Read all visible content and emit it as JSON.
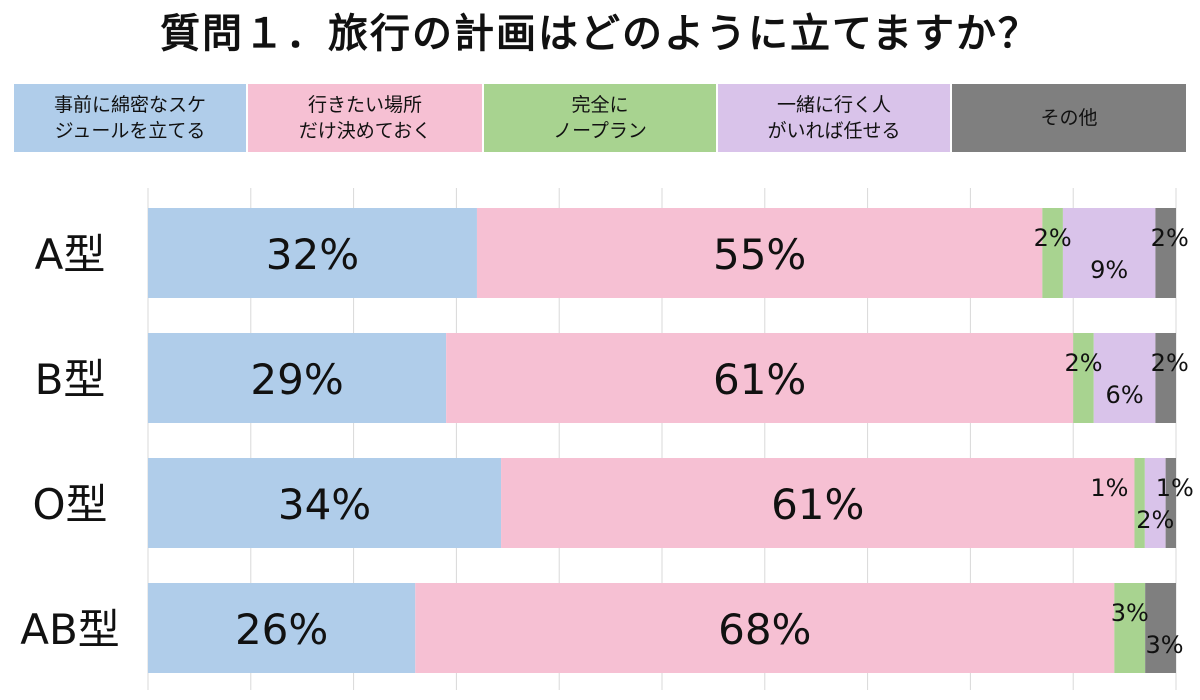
{
  "chart_data": {
    "type": "bar",
    "orientation": "horizontal",
    "stacked": true,
    "title": "質問１．旅行の計画はどのように立てますか？",
    "categories": [
      "A型",
      "B型",
      "O型",
      "AB型"
    ],
    "series": [
      {
        "name_lines": [
          "事前に綿密なスケ",
          "ジュールを立てる"
        ],
        "color": "#B0CDEA",
        "values": [
          32,
          29,
          34,
          26
        ],
        "labels": [
          "32%",
          "29%",
          "34%",
          "26%"
        ]
      },
      {
        "name_lines": [
          "行きたい場所",
          "だけ決めておく"
        ],
        "color": "#F6C0D3",
        "values": [
          55,
          61,
          61,
          68
        ],
        "labels": [
          "55%",
          "61%",
          "61%",
          "68%"
        ]
      },
      {
        "name_lines": [
          "完全に",
          "ノープラン"
        ],
        "color": "#A8D390",
        "values": [
          2,
          2,
          1,
          3
        ],
        "labels": [
          "2%",
          "2%",
          "1%",
          "3%"
        ]
      },
      {
        "name_lines": [
          "一緒に行く人",
          "がいれば任せる"
        ],
        "color": "#D9C3EA",
        "values": [
          9,
          6,
          2,
          0
        ],
        "labels": [
          "9%",
          "6%",
          "2%",
          ""
        ]
      },
      {
        "name_lines": [
          "その他"
        ],
        "color": "#7F7F7F",
        "values": [
          2,
          2,
          1,
          3
        ],
        "labels": [
          "2%",
          "2%",
          "1%",
          "3%"
        ]
      }
    ],
    "xlim": [
      0,
      100
    ],
    "grid": true,
    "legend_position": "top"
  }
}
